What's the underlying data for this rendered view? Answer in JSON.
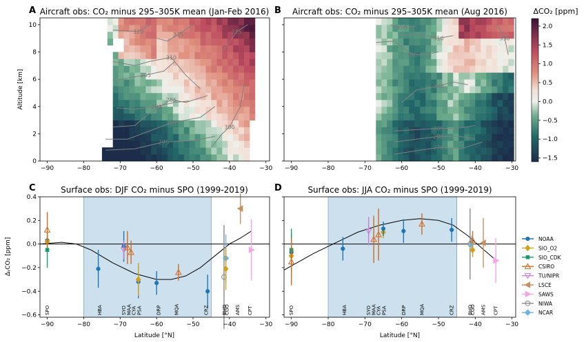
{
  "chart_data": [
    {
      "id": "A",
      "type": "heatmap",
      "panel_label": "A",
      "title": "Aircraft obs: CO₂ minus 295–305K mean (Jan-Feb 2016)",
      "xlabel": "",
      "ylabel": "Altitude [km]",
      "xlim": [
        -92,
        -29
      ],
      "ylim": [
        0,
        10.5
      ],
      "xticks": [
        -90,
        -80,
        -70,
        -60,
        -50,
        -40,
        -30
      ],
      "yticks": [
        0,
        2,
        4,
        6,
        8,
        10
      ],
      "lat_range": [
        -75,
        -33
      ],
      "contour_labels": [
        "275",
        "280",
        "285",
        "290",
        "300",
        "305",
        "310",
        "315",
        "320",
        "325"
      ]
    },
    {
      "id": "B",
      "type": "heatmap",
      "panel_label": "B",
      "title": "Aircraft obs: CO₂ minus 295–305K mean (Aug 2016)",
      "xlabel": "",
      "ylabel": "",
      "xlim": [
        -92,
        -29
      ],
      "ylim": [
        0,
        10.5
      ],
      "xticks": [
        -90,
        -80,
        -70,
        -60,
        -50,
        -40,
        -30
      ],
      "yticks": [
        0,
        2,
        4,
        6,
        8,
        10
      ],
      "lat_range": [
        -67,
        -30
      ],
      "contour_labels": [
        "275",
        "280",
        "285",
        "290",
        "305",
        "310",
        "320",
        "330"
      ]
    },
    {
      "id": "colorbar",
      "label": "ΔCO₂ [ppm]",
      "range": [
        -1.6,
        2.2
      ],
      "ticks": [
        "2.0",
        "1.5",
        "1.0",
        "0.5",
        "0.0",
        "−0.5",
        "−1.0",
        "−1.5"
      ]
    },
    {
      "id": "C",
      "type": "scatter",
      "panel_label": "C",
      "title": "Surface obs: DJF CO₂ minus SPO (1999-2019)",
      "xlabel": "Latitude [°N]",
      "ylabel": "ΔᵧCO₂ [ppm]",
      "xlim": [
        -92,
        -29
      ],
      "ylim": [
        -0.62,
        0.4
      ],
      "xticks": [
        -90,
        -80,
        -70,
        -60,
        -50,
        -40,
        -30
      ],
      "yticks": [
        0.4,
        0.2,
        0.0,
        -0.2,
        -0.4,
        -0.6
      ],
      "shaded_band": [
        -80,
        -45
      ],
      "fit_line": [
        [
          -92,
          0.0
        ],
        [
          -86,
          0.015
        ],
        [
          -82,
          0.0
        ],
        [
          -78,
          -0.05
        ],
        [
          -72,
          -0.16
        ],
        [
          -66,
          -0.25
        ],
        [
          -60,
          -0.3
        ],
        [
          -56,
          -0.3
        ],
        [
          -52,
          -0.27
        ],
        [
          -48,
          -0.2
        ],
        [
          -44,
          -0.1
        ],
        [
          -40,
          0.0
        ],
        [
          -37,
          0.05
        ],
        [
          -34,
          0.11
        ]
      ],
      "points": [
        {
          "network": "NOAA",
          "lat": -90,
          "y": 0.03,
          "err": 0.0
        },
        {
          "network": "SIO_O2",
          "lat": -90,
          "y": 0.02,
          "err": 0.05
        },
        {
          "network": "SIO_CDK",
          "lat": -90,
          "y": -0.05,
          "err": 0.15
        },
        {
          "network": "CSIRO",
          "lat": -90,
          "y": 0.12,
          "err": 0.15
        },
        {
          "network": "NOAA",
          "lat": -76,
          "y": -0.21,
          "err": 0.16
        },
        {
          "network": "NOAA",
          "lat": -69,
          "y": -0.02,
          "err": 0.13
        },
        {
          "network": "TU/NIPR",
          "lat": -69,
          "y": -0.05,
          "err": 0.08
        },
        {
          "network": "CSIRO",
          "lat": -68,
          "y": -0.03,
          "err": 0.14
        },
        {
          "network": "CSIRO",
          "lat": -67,
          "y": -0.07,
          "err": 0.1
        },
        {
          "network": "NOAA",
          "lat": -65,
          "y": -0.32,
          "err": 0.14
        },
        {
          "network": "SIO_O2",
          "lat": -65,
          "y": -0.3,
          "err": 0.14
        },
        {
          "network": "NOAA",
          "lat": -60,
          "y": -0.33,
          "err": 0.1
        },
        {
          "network": "CSIRO",
          "lat": -54,
          "y": -0.24,
          "err": 0.07
        },
        {
          "network": "NOAA",
          "lat": -46,
          "y": -0.4,
          "err": 0.14
        },
        {
          "network": "NIWA",
          "lat": -41.5,
          "y": -0.28,
          "err": 0.44
        },
        {
          "network": "NCAR",
          "lat": -41,
          "y": -0.12,
          "err": 0.2
        },
        {
          "network": "SIO_O2",
          "lat": -41,
          "y": -0.21,
          "err": 0.18
        },
        {
          "network": "LSCE",
          "lat": -37,
          "y": 0.3,
          "err": 0.13
        },
        {
          "network": "SAWS",
          "lat": -34,
          "y": -0.05,
          "err": 0.26
        }
      ],
      "stations": [
        {
          "code": "SPO",
          "lat": -90
        },
        {
          "code": "HBA",
          "lat": -75.6
        },
        {
          "code": "SYO",
          "lat": -69
        },
        {
          "code": "MAA",
          "lat": -67.6
        },
        {
          "code": "CYA",
          "lat": -66.3
        },
        {
          "code": "PSA",
          "lat": -64.8
        },
        {
          "code": "DRP",
          "lat": -59.5
        },
        {
          "code": "MQA",
          "lat": -54.5
        },
        {
          "code": "CRZ",
          "lat": -46.4
        },
        {
          "code": "BHD",
          "lat": -41.4
        },
        {
          "code": "CGO",
          "lat": -40.7
        },
        {
          "code": "AMS",
          "lat": -37.8
        },
        {
          "code": "CPT",
          "lat": -34.4
        }
      ]
    },
    {
      "id": "D",
      "type": "scatter",
      "panel_label": "D",
      "title": "Surface obs: JJA CO₂ minus SPO (1999-2019)",
      "xlabel": "Latitude [°N]",
      "ylabel": "",
      "xlim": [
        -92,
        -29
      ],
      "ylim": [
        -0.62,
        0.4
      ],
      "xticks": [
        -90,
        -80,
        -70,
        -60,
        -50,
        -40,
        -30
      ],
      "yticks": [
        0.4,
        0.2,
        0.0,
        -0.2,
        -0.4,
        -0.6
      ],
      "shaded_band": [
        -80,
        -45
      ],
      "fit_line": [
        [
          -92,
          -0.22
        ],
        [
          -88,
          -0.15
        ],
        [
          -84,
          -0.08
        ],
        [
          -80,
          -0.02
        ],
        [
          -76,
          0.04
        ],
        [
          -72,
          0.1
        ],
        [
          -66,
          0.16
        ],
        [
          -60,
          0.2
        ],
        [
          -55,
          0.215
        ],
        [
          -50,
          0.2
        ],
        [
          -46,
          0.16
        ],
        [
          -42,
          0.07
        ],
        [
          -38,
          -0.04
        ],
        [
          -35,
          -0.12
        ]
      ],
      "points": [
        {
          "network": "NOAA",
          "lat": -90,
          "y": -0.07,
          "err": 0.15
        },
        {
          "network": "SIO_O2",
          "lat": -90,
          "y": -0.1,
          "err": 0.17
        },
        {
          "network": "SIO_CDK",
          "lat": -90,
          "y": -0.05,
          "err": 0.18
        },
        {
          "network": "CSIRO",
          "lat": -90,
          "y": -0.15,
          "err": 0.2
        },
        {
          "network": "NOAA",
          "lat": -76,
          "y": -0.04,
          "err": 0.1
        },
        {
          "network": "TU/NIPR",
          "lat": -69,
          "y": 0.11,
          "err": 0.12
        },
        {
          "network": "CSIRO",
          "lat": -67.6,
          "y": 0.04,
          "err": 0.2
        },
        {
          "network": "CSIRO",
          "lat": -66.3,
          "y": 0.08,
          "err": 0.22
        },
        {
          "network": "SIO_O2",
          "lat": -65,
          "y": 0.1,
          "err": 0.05
        },
        {
          "network": "NOAA",
          "lat": -65,
          "y": 0.13,
          "err": 0.06
        },
        {
          "network": "NOAA",
          "lat": -59.5,
          "y": 0.11,
          "err": 0.1
        },
        {
          "network": "CSIRO",
          "lat": -54.5,
          "y": 0.17,
          "err": 0.09
        },
        {
          "network": "NOAA",
          "lat": -46.4,
          "y": 0.12,
          "err": 0.1
        },
        {
          "network": "NIWA",
          "lat": -41.4,
          "y": 0.0,
          "err": 0.3
        },
        {
          "network": "NCAR",
          "lat": -41,
          "y": 0.0,
          "err": 0.07
        },
        {
          "network": "CSIRO",
          "lat": -40.7,
          "y": 0.03,
          "err": 0.08
        },
        {
          "network": "SIO_O2",
          "lat": -40.7,
          "y": -0.05,
          "err": 0.06
        },
        {
          "network": "LSCE",
          "lat": -37.8,
          "y": 0.01,
          "err": 0.21
        },
        {
          "network": "SAWS",
          "lat": -34.4,
          "y": -0.14,
          "err": 0.19
        }
      ],
      "stations": [
        {
          "code": "SPO",
          "lat": -90
        },
        {
          "code": "HBA",
          "lat": -75.6
        },
        {
          "code": "SYO",
          "lat": -69
        },
        {
          "code": "MAA",
          "lat": -67.6
        },
        {
          "code": "CYA",
          "lat": -66.3
        },
        {
          "code": "PSA",
          "lat": -64.8
        },
        {
          "code": "DRP",
          "lat": -59.5
        },
        {
          "code": "MQA",
          "lat": -54.5
        },
        {
          "code": "CRZ",
          "lat": -46.4
        },
        {
          "code": "BHD",
          "lat": -41.4
        },
        {
          "code": "CGO",
          "lat": -40.7
        },
        {
          "code": "AMS",
          "lat": -37.8
        },
        {
          "code": "CPT",
          "lat": -34.4
        }
      ]
    }
  ],
  "legend": [
    {
      "name": "NOAA",
      "color": "#1f77b4",
      "marker": "circle"
    },
    {
      "name": "SIO_O2",
      "color": "#d4a017",
      "marker": "diamond"
    },
    {
      "name": "SIO_CDK",
      "color": "#1a9a6e",
      "marker": "square"
    },
    {
      "name": "CSIRO",
      "color": "#d2691e",
      "marker": "triangle-up-open"
    },
    {
      "name": "TU/NIPR",
      "color": "#c77fd6",
      "marker": "triangle-down-open"
    },
    {
      "name": "LSCE",
      "color": "#c49264",
      "marker": "triangle-left"
    },
    {
      "name": "SAWS",
      "color": "#f5a5e6",
      "marker": "triangle-right"
    },
    {
      "name": "NIWA",
      "color": "#888888",
      "marker": "circle-open"
    },
    {
      "name": "NCAR",
      "color": "#6bb3e6",
      "marker": "diamond-wide"
    }
  ]
}
